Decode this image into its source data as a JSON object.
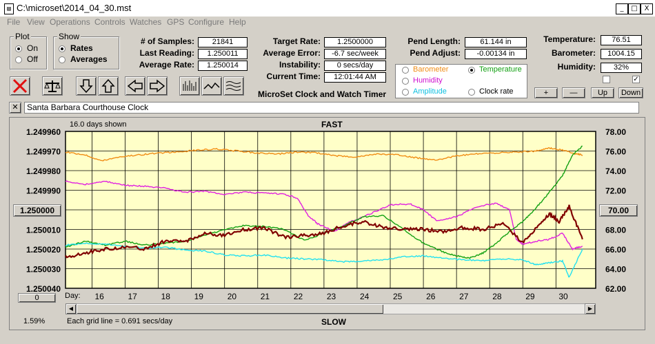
{
  "window": {
    "title": "C:\\microset\\2014_04_30.mst",
    "min": "_",
    "max": "□",
    "close": "X"
  },
  "menu": [
    "File",
    "View",
    "Operations",
    "Controls",
    "Watches",
    "GPS",
    "Configure",
    "Help"
  ],
  "plot": {
    "label": "Plot",
    "on": "On",
    "off": "Off",
    "selected": "On"
  },
  "show": {
    "label": "Show",
    "rates": "Rates",
    "averages": "Averages",
    "selected": "Rates"
  },
  "stats": {
    "samples_label": "# of Samples:",
    "samples": "21841",
    "last_label": "Last Reading:",
    "last": "1.250011",
    "avg_label": "Average Rate:",
    "avg": "1.250014"
  },
  "rate": {
    "target_label": "Target Rate:",
    "target": "1.2500000",
    "error_label": "Average Error:",
    "error": "-6.7 sec/week",
    "inst_label": "Instability:",
    "inst": "0 secs/day",
    "time_label": "Current Time:",
    "time": "12:01:44 AM"
  },
  "pend": {
    "length_label": "Pend Length:",
    "length": "61.144 in",
    "adjust_label": "Pend Adjust:",
    "adjust": "-0.00134 in"
  },
  "env": {
    "temp_label": "Temperature:",
    "temp": "76.51",
    "baro_label": "Barometer:",
    "baro": "1004.15",
    "hum_label": "Humidity:",
    "hum": "32%"
  },
  "series_select": {
    "barometer": "Barometer",
    "temperature": "Temperature",
    "humidity": "Humidity",
    "amplitude": "Amplitude",
    "clock_rate": "Clock rate",
    "selected": "Temperature"
  },
  "app_caption": "MicroSet Clock and Watch Timer",
  "step_buttons": {
    "plus": "+",
    "minus": "—",
    "up": "Up",
    "down": "Down"
  },
  "checkboxes": {
    "left": false,
    "right": true
  },
  "clock_name": "Santa Barbara Courthouse Clock",
  "chart_data": {
    "type": "line",
    "top_label": "FAST",
    "bottom_label": "SLOW",
    "days_shown": "16.0 days shown",
    "grid_note": "Each grid line = 0.691 secs/day",
    "percent": "1.59%",
    "day_prefix": "Day:",
    "left_value_box": "1.250000",
    "left_zero_box": "0",
    "right_value_box": "70.00",
    "y_left_ticks": [
      "1.249960",
      "1.249970",
      "1.249980",
      "1.249990",
      "1.250000",
      "1.250010",
      "1.250020",
      "1.250030",
      "1.250040"
    ],
    "y_right_ticks": [
      "78.00",
      "76.00",
      "74.00",
      "72.00",
      "70.00",
      "68.00",
      "66.00",
      "64.00",
      "62.00"
    ],
    "x_days": [
      "16",
      "17",
      "18",
      "19",
      "20",
      "21",
      "22",
      "23",
      "24",
      "25",
      "26",
      "27",
      "28",
      "29",
      "30"
    ],
    "x_range": [
      15.2,
      31.2
    ],
    "left_range": [
      1.24996,
      1.25004
    ],
    "right_range": [
      62,
      78
    ],
    "colors": {
      "barometer": "#f08c14",
      "temperature": "#12a012",
      "humidity": "#e020e0",
      "amplitude": "#20e0f0",
      "clock_rate": "#800000"
    },
    "series": [
      {
        "name": "Barometer",
        "key": "barometer",
        "axis": "right",
        "x": [
          15.2,
          15.8,
          16.3,
          16.8,
          17.4,
          18.0,
          18.6,
          19.2,
          19.8,
          20.4,
          21.0,
          21.6,
          22.2,
          22.8,
          23.4,
          24.0,
          24.6,
          25.2,
          25.8,
          26.4,
          27.0,
          27.6,
          28.2,
          28.8,
          29.4,
          29.8,
          30.2,
          30.6,
          30.8
        ],
        "y": [
          75.9,
          75.6,
          75.0,
          75.4,
          75.6,
          75.8,
          75.9,
          76.1,
          76.2,
          76.0,
          75.8,
          75.7,
          75.9,
          75.8,
          75.5,
          75.4,
          75.7,
          75.6,
          75.3,
          75.1,
          75.5,
          75.7,
          75.8,
          75.9,
          76.0,
          76.3,
          76.1,
          75.7,
          75.6
        ]
      },
      {
        "name": "Humidity",
        "key": "humidity",
        "axis": "right",
        "x": [
          15.2,
          15.8,
          16.4,
          17.0,
          17.6,
          18.2,
          18.8,
          19.4,
          20.0,
          20.6,
          21.2,
          21.8,
          22.2,
          22.5,
          22.8,
          23.3,
          23.8,
          24.4,
          25.0,
          25.6,
          26.0,
          26.4,
          27.0,
          27.6,
          28.2,
          28.6,
          28.8,
          29.0,
          29.4,
          29.8,
          30.2,
          30.5,
          30.8
        ],
        "y": [
          72.9,
          72.6,
          72.9,
          72.5,
          72.4,
          72.2,
          71.8,
          71.9,
          71.6,
          71.8,
          71.7,
          71.6,
          71.2,
          69.5,
          68.6,
          67.8,
          68.8,
          69.6,
          70.5,
          70.6,
          70.0,
          68.9,
          69.3,
          70.3,
          70.7,
          70.0,
          67.0,
          66.5,
          66.8,
          67.0,
          67.6,
          66.0,
          66.3
        ]
      },
      {
        "name": "Temperature",
        "key": "temperature",
        "axis": "right",
        "x": [
          15.2,
          15.8,
          16.4,
          17.0,
          17.6,
          18.2,
          18.8,
          19.4,
          20.0,
          20.6,
          21.2,
          21.8,
          22.4,
          23.0,
          23.6,
          24.2,
          24.8,
          25.4,
          26.0,
          26.6,
          27.0,
          27.4,
          27.8,
          28.2,
          28.6,
          29.0,
          29.4,
          29.8,
          30.2,
          30.5,
          30.8
        ],
        "y": [
          66.2,
          66.8,
          66.4,
          66.8,
          66.4,
          66.6,
          66.8,
          67.4,
          68.0,
          68.4,
          68.3,
          68.0,
          66.9,
          67.6,
          68.4,
          69.3,
          69.4,
          68.0,
          66.6,
          65.7,
          65.3,
          65.1,
          65.6,
          66.6,
          67.8,
          68.8,
          70.2,
          71.8,
          73.5,
          75.6,
          76.5
        ]
      },
      {
        "name": "Amplitude",
        "key": "amplitude",
        "axis": "right",
        "x": [
          15.2,
          15.8,
          16.4,
          17.0,
          17.6,
          18.2,
          18.8,
          19.4,
          20.0,
          20.6,
          21.2,
          21.8,
          22.4,
          23.0,
          23.6,
          24.2,
          24.8,
          25.4,
          26.0,
          26.6,
          27.2,
          27.8,
          28.4,
          29.0,
          29.4,
          29.8,
          30.2,
          30.4,
          30.8
        ],
        "y": [
          66.4,
          66.6,
          66.5,
          66.3,
          66.1,
          66.2,
          65.9,
          65.8,
          65.4,
          65.3,
          65.4,
          65.1,
          65.0,
          64.9,
          64.7,
          64.8,
          64.9,
          65.2,
          65.3,
          65.1,
          64.9,
          64.8,
          65.0,
          64.9,
          64.4,
          64.6,
          64.8,
          63.1,
          66.0
        ]
      },
      {
        "name": "Clock rate",
        "key": "clock_rate",
        "axis": "left",
        "x": [
          15.2,
          15.8,
          16.4,
          17.0,
          17.6,
          18.2,
          18.8,
          19.4,
          20.0,
          20.6,
          21.2,
          21.8,
          22.4,
          23.0,
          23.6,
          24.2,
          24.8,
          25.4,
          26.0,
          26.6,
          27.2,
          27.8,
          28.4,
          29.0,
          29.4,
          29.8,
          30.1,
          30.4,
          30.8
        ],
        "y": [
          1.250024,
          1.250022,
          1.25002,
          1.250019,
          1.25002,
          1.250016,
          1.250016,
          1.250012,
          1.250013,
          1.25001,
          1.250009,
          1.250014,
          1.250013,
          1.250012,
          1.250008,
          1.250006,
          1.250009,
          1.25001,
          1.25001,
          1.250011,
          1.250009,
          1.25001,
          1.250007,
          1.250017,
          1.250009,
          1.250002,
          1.250006,
          1.249998,
          1.250015
        ]
      }
    ]
  }
}
